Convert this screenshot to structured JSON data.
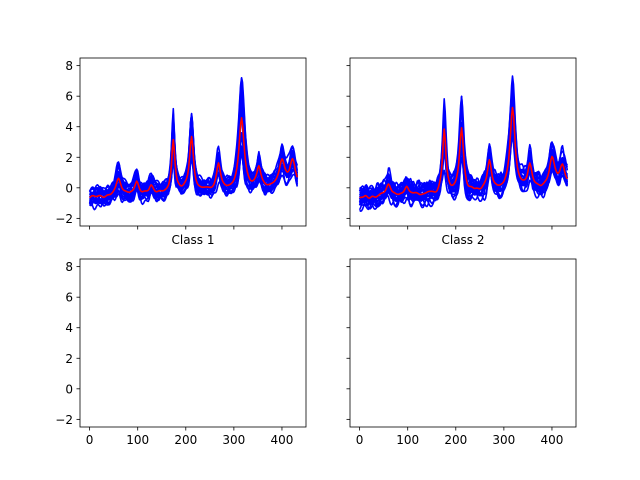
{
  "figure": {
    "background": "#ffffff",
    "trace_color": "#0000ff",
    "mean_color": "#ff0000"
  },
  "chart_data": [
    {
      "type": "line",
      "panel": "top-left",
      "label": "Class 1",
      "xlim": [
        -20,
        450
      ],
      "ylim": [
        -2.5,
        8.5
      ],
      "xticks": [
        0,
        100,
        200,
        300,
        400
      ],
      "yticks": [
        -2,
        0,
        2,
        4,
        6,
        8
      ],
      "show_xtick_labels": false,
      "show_ytick_labels": true,
      "x_range": [
        0,
        432
      ],
      "peaks": [
        {
          "x": 60,
          "height": 1.2,
          "width": 6
        },
        {
          "x": 98,
          "height": 0.9,
          "width": 5
        },
        {
          "x": 128,
          "height": 0.6,
          "width": 5
        },
        {
          "x": 174,
          "height": 3.4,
          "width": 4
        },
        {
          "x": 212,
          "height": 3.6,
          "width": 5
        },
        {
          "x": 268,
          "height": 1.7,
          "width": 5
        },
        {
          "x": 316,
          "height": 4.8,
          "width": 6
        },
        {
          "x": 352,
          "height": 1.5,
          "width": 5
        },
        {
          "x": 400,
          "height": 1.6,
          "width": 7
        },
        {
          "x": 422,
          "height": 1.6,
          "width": 7
        }
      ],
      "baseline": -0.7,
      "trace_count": 22,
      "series": [
        {
          "role": "samples",
          "color": "#0000ff"
        },
        {
          "role": "mean",
          "color": "#ff0000"
        }
      ]
    },
    {
      "type": "line",
      "panel": "top-right",
      "label": "Class 2",
      "xlim": [
        -20,
        450
      ],
      "ylim": [
        -2.5,
        8.5
      ],
      "xticks": [
        0,
        100,
        200,
        300,
        400
      ],
      "yticks": [
        -2,
        0,
        2,
        4,
        6,
        8
      ],
      "show_xtick_labels": false,
      "show_ytick_labels": false,
      "x_range": [
        0,
        432
      ],
      "peaks": [
        {
          "x": 60,
          "height": 0.8,
          "width": 6
        },
        {
          "x": 98,
          "height": 0.6,
          "width": 5
        },
        {
          "x": 176,
          "height": 4.0,
          "width": 4
        },
        {
          "x": 212,
          "height": 4.0,
          "width": 5
        },
        {
          "x": 270,
          "height": 1.8,
          "width": 5
        },
        {
          "x": 318,
          "height": 5.2,
          "width": 6
        },
        {
          "x": 354,
          "height": 1.4,
          "width": 5
        },
        {
          "x": 400,
          "height": 1.7,
          "width": 7
        },
        {
          "x": 422,
          "height": 1.5,
          "width": 7
        }
      ],
      "baseline": -0.7,
      "trace_count": 22,
      "series": [
        {
          "role": "samples",
          "color": "#0000ff"
        },
        {
          "role": "mean",
          "color": "#ff0000"
        }
      ]
    },
    {
      "type": "line",
      "panel": "bottom-left",
      "label": "",
      "xlim": [
        -20,
        450
      ],
      "ylim": [
        -2.5,
        8.5
      ],
      "xticks": [
        0,
        100,
        200,
        300,
        400
      ],
      "yticks": [
        -2,
        0,
        2,
        4,
        6,
        8
      ],
      "show_xtick_labels": true,
      "show_ytick_labels": true,
      "series": []
    },
    {
      "type": "line",
      "panel": "bottom-right",
      "label": "",
      "xlim": [
        -20,
        450
      ],
      "ylim": [
        -2.5,
        8.5
      ],
      "xticks": [
        0,
        100,
        200,
        300,
        400
      ],
      "yticks": [
        -2,
        0,
        2,
        4,
        6,
        8
      ],
      "show_xtick_labels": true,
      "show_ytick_labels": false,
      "series": []
    }
  ]
}
